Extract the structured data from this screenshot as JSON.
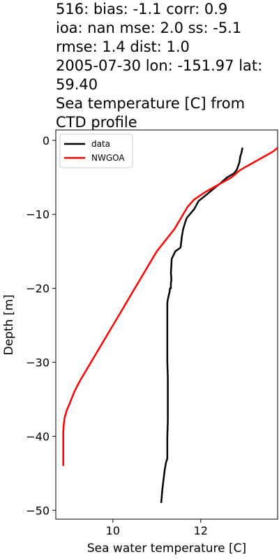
{
  "chart_data": {
    "type": "line",
    "title_lines": [
      "516: bias: -1.1  corr: 0.9",
      "ioa: nan  mse: 2.0  ss: -5.1",
      "rmse: 1.4  dist: 1.0",
      "2005-07-30 lon: -151.97 lat:",
      "59.40",
      "Sea temperature [C] from",
      "CTD profile"
    ],
    "xlabel": "Sea water temperature [C]",
    "ylabel": "Depth [m]",
    "xlim": [
      8.7,
      13.75
    ],
    "ylim": [
      -51.2,
      1.4
    ],
    "xticks": [
      10,
      12
    ],
    "xtick_labels": [
      "10",
      "12"
    ],
    "yticks": [
      0,
      -10,
      -20,
      -30,
      -40,
      -50
    ],
    "ytick_labels": [
      "0",
      "−10",
      "−20",
      "−30",
      "−40",
      "−50"
    ],
    "legend_position": "upper-left",
    "series": [
      {
        "name": "data",
        "color": "#000000",
        "x": [
          12.95,
          12.93,
          12.9,
          12.88,
          12.85,
          12.82,
          12.75,
          12.6,
          12.45,
          12.3,
          12.1,
          11.95,
          11.85,
          11.75,
          11.68,
          11.65,
          11.6,
          11.57,
          11.55,
          11.54,
          11.42,
          11.38,
          11.34,
          11.33,
          11.32,
          11.33,
          11.33,
          11.32,
          11.32,
          11.32,
          11.3,
          11.29,
          11.27,
          11.25,
          11.24,
          11.24,
          11.24,
          11.24,
          11.24,
          11.25,
          11.25,
          11.25,
          11.25,
          11.24,
          11.24,
          11.21,
          11.18,
          11.16,
          11.14,
          11.12,
          11.11,
          11.1
        ],
        "y": [
          -1,
          -1.6,
          -2.2,
          -3,
          -3.5,
          -4,
          -4.5,
          -5,
          -5.8,
          -6.5,
          -7.5,
          -8.2,
          -9.3,
          -10,
          -10.5,
          -11,
          -12,
          -13,
          -14,
          -14.5,
          -15,
          -15.5,
          -16,
          -17,
          -18,
          -18.5,
          -19,
          -19.3,
          -19.6,
          -20,
          -20,
          -20.5,
          -21,
          -21.5,
          -22,
          -24,
          -26,
          -28,
          -30,
          -32,
          -34,
          -36,
          -38,
          -40,
          -43,
          -43.5,
          -44.5,
          -45.5,
          -46.5,
          -47.5,
          -48.3,
          -49
        ]
      },
      {
        "name": "NWGOA",
        "color": "#ff0000",
        "x": [
          13.75,
          13.65,
          13.5,
          13.2,
          12.9,
          12.7,
          12.4,
          12.1,
          11.85,
          11.7,
          11.55,
          11.4,
          11.2,
          11.0,
          10.8,
          10.6,
          10.4,
          10.2,
          10.0,
          9.8,
          9.6,
          9.4,
          9.25,
          9.12,
          9.02,
          8.95,
          8.9,
          8.88,
          8.87,
          8.87,
          8.87,
          8.87
        ],
        "y": [
          -1,
          -1.5,
          -2,
          -3,
          -4,
          -5,
          -6,
          -7,
          -8,
          -9,
          -10.5,
          -12,
          -13.5,
          -15,
          -17,
          -19,
          -21,
          -23,
          -25,
          -27,
          -29,
          -31,
          -32.5,
          -34,
          -35.5,
          -36.5,
          -37.5,
          -38.5,
          -39.5,
          -41,
          -43,
          -44
        ]
      }
    ]
  }
}
